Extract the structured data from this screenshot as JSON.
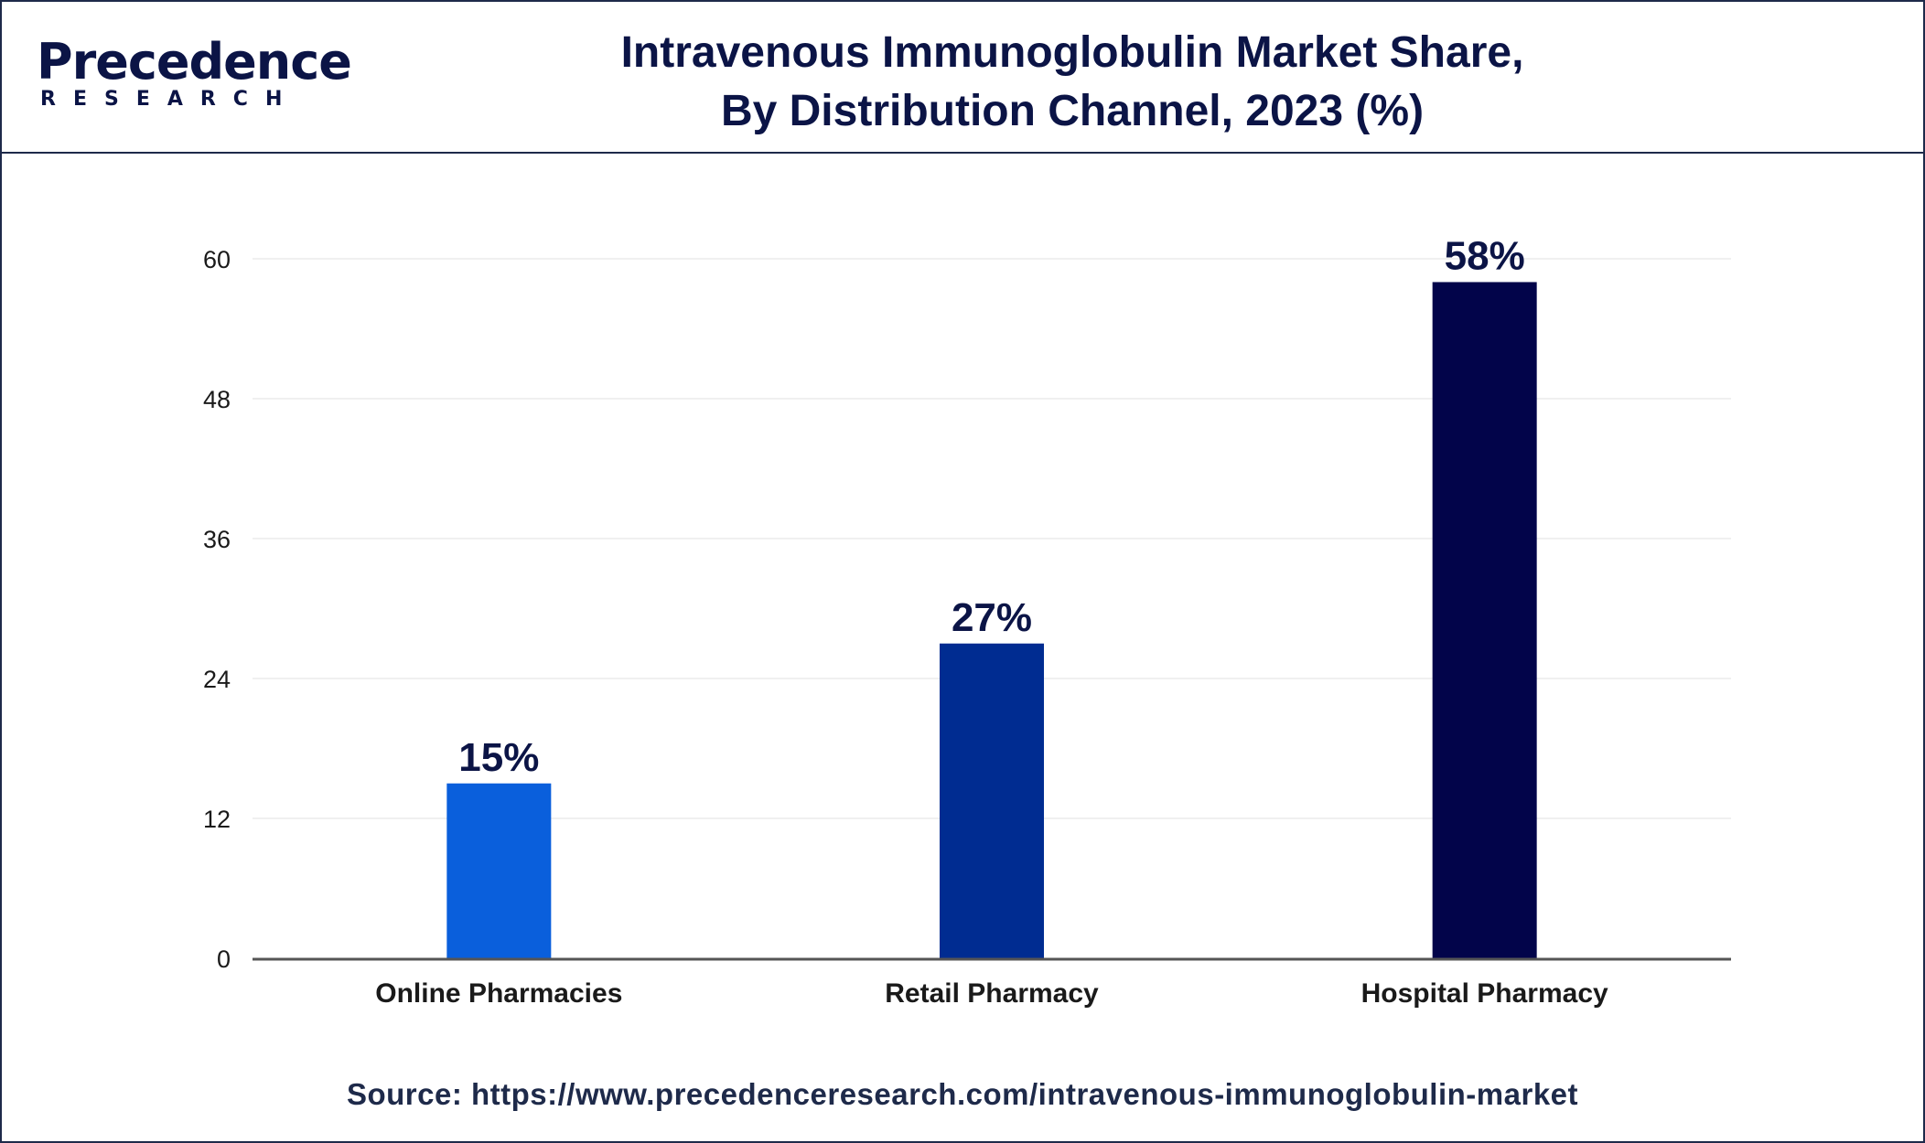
{
  "logo": {
    "word": "Precedence",
    "sub": "RESEARCH",
    "primary_color": "#0b1446",
    "accent_color": "#1a4fd0"
  },
  "title_line1": "Intravenous Immunoglobulin Market Share,",
  "title_line2": "By Distribution Channel, 2023 (%)",
  "source": "Source: https://www.precedenceresearch.com/intravenous-immunoglobulin-market",
  "chart_data": {
    "type": "bar",
    "title": "Intravenous Immunoglobulin Market Share, By Distribution Channel, 2023 (%)",
    "categories": [
      "Online Pharmacies",
      "Retail Pharmacy",
      "Hospital Pharmacy"
    ],
    "values": [
      15,
      27,
      58
    ],
    "data_labels": [
      "15%",
      "27%",
      "58%"
    ],
    "bar_colors": [
      "#0a5fdc",
      "#002c91",
      "#02044a"
    ],
    "ylim": [
      0,
      60
    ],
    "yticks": [
      0,
      12,
      24,
      36,
      48,
      60
    ],
    "xlabel": "",
    "ylabel": "",
    "grid": true,
    "legend": "none"
  }
}
